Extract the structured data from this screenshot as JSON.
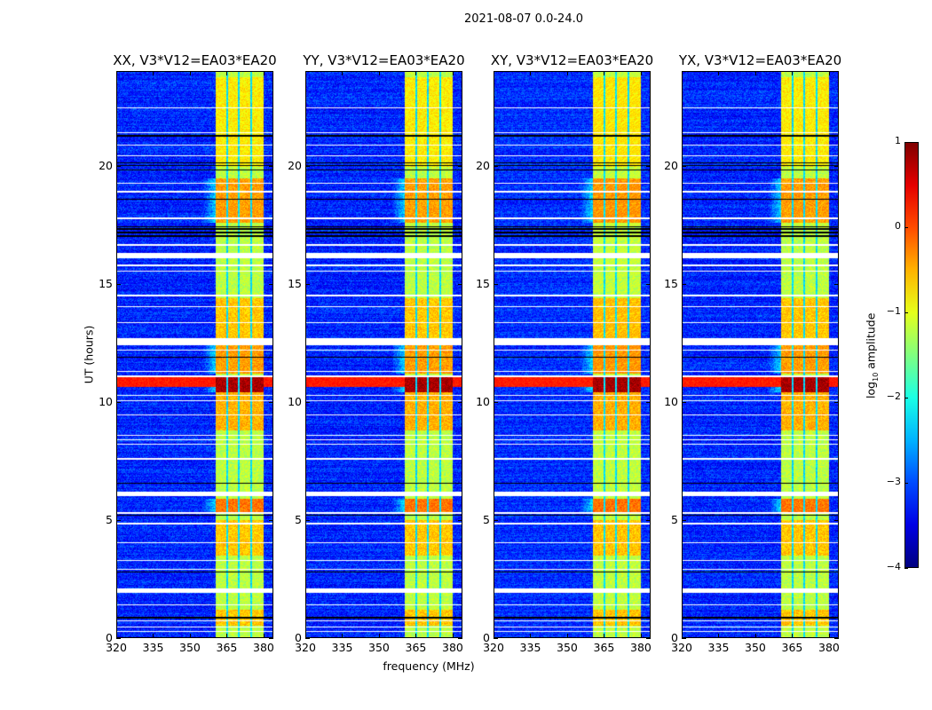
{
  "chart_data": {
    "type": "heatmap",
    "title": "2021-08-07 0.0-24.0",
    "colormap": "jet",
    "xlabel": "frequency (MHz)",
    "ylabel": "UT (hours)",
    "xlim": [
      320,
      384
    ],
    "ylim": [
      0,
      24
    ],
    "xticks": [
      320,
      335,
      350,
      365,
      380
    ],
    "yticks": [
      0,
      5,
      10,
      15,
      20
    ],
    "panels": [
      {
        "title": "XX, V3*V12=EA03*EA20",
        "seed": 11
      },
      {
        "title": "YY, V3*V12=EA03*EA20",
        "seed": 23
      },
      {
        "title": "XY, V3*V12=EA03*EA20",
        "seed": 37
      },
      {
        "title": "YX, V3*V12=EA03*EA20",
        "seed": 51
      }
    ],
    "colorbar": {
      "label_prefix": "log",
      "label_sub": "10",
      "label_suffix": " amplitude",
      "range": [
        -4,
        1
      ],
      "ticks": [
        1,
        0,
        -1,
        -2,
        -3,
        -4
      ]
    },
    "background_level": -3.2,
    "rfi_band_mhz": [
      360.5,
      380
    ],
    "subband_gaps_mhz": [
      365,
      370,
      375
    ],
    "band_level": -1.2,
    "band_segments": [
      {
        "t": [
          0.5,
          1.2
        ],
        "level": -0.6
      },
      {
        "t": [
          3.5,
          5.0
        ],
        "level": -0.6
      },
      {
        "t": [
          5.3,
          5.9
        ],
        "level": -0.2
      },
      {
        "t": [
          8.8,
          10.4
        ],
        "level": -0.5
      },
      {
        "t": [
          10.4,
          11.1
        ],
        "level": 0.8
      },
      {
        "t": [
          11.2,
          12.4
        ],
        "level": -0.4
      },
      {
        "t": [
          12.7,
          14.4
        ],
        "level": -0.6
      },
      {
        "t": [
          17.6,
          19.5
        ],
        "level": -0.4
      },
      {
        "t": [
          20.0,
          23.8
        ],
        "level": -0.8
      }
    ],
    "broadband_rfi": [
      {
        "t": [
          10.65,
          11.05
        ],
        "level": 0.4
      }
    ],
    "flagged_bands_hours": [
      [
        1.9,
        2.1
      ],
      [
        6.0,
        6.2
      ],
      [
        12.4,
        12.7
      ],
      [
        16.1,
        16.35
      ]
    ],
    "flagged_rows_hours": [
      22.5,
      21.45,
      20.9,
      20.45,
      19.3,
      18.93,
      17.8,
      16.67,
      15.8,
      15.55,
      14.53,
      14.05,
      13.37,
      12.2,
      11.3,
      11.1,
      10.29,
      10.06,
      9.46,
      8.6,
      8.41,
      8.22,
      7.59,
      5.29,
      4.84,
      4.02,
      3.27,
      2.89,
      1.39,
      0.71,
      0.45,
      0.26
    ],
    "dark_rows_hours": [
      17.05,
      17.2,
      17.35,
      17.45,
      19.85,
      20.05,
      20.15,
      21.3,
      18.6,
      11.9,
      6.55,
      5.2,
      2.8,
      0.85
    ]
  }
}
